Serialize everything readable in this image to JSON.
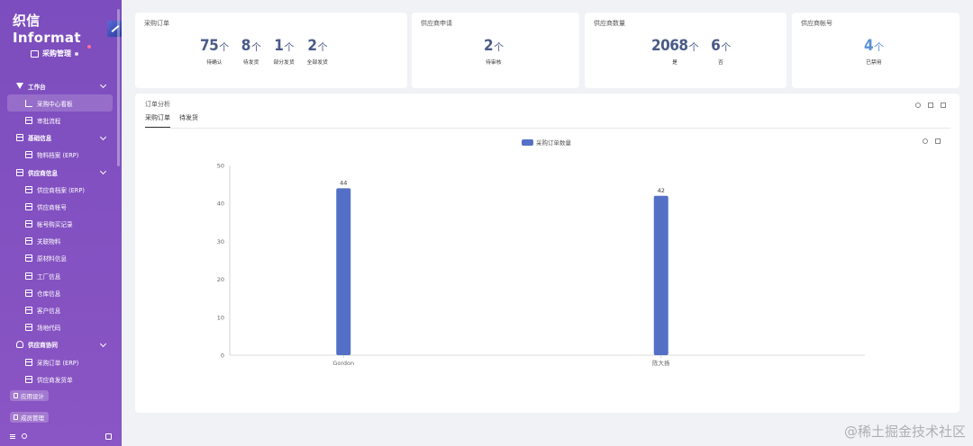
{
  "app": {
    "logo": "织信 Informat",
    "module": "采购管理"
  },
  "sidebar": {
    "items": [
      {
        "label": "工作台",
        "type": "group",
        "icon": "funnel-icon",
        "name": "workbench"
      },
      {
        "label": "采购中心看板",
        "type": "child",
        "icon": "chart-icon",
        "active": true,
        "name": "purchase-dashboard"
      },
      {
        "label": "审批流程",
        "type": "child",
        "icon": "grid-icon",
        "name": "approval-flow"
      },
      {
        "label": "基础信息",
        "type": "group",
        "icon": "grid-icon",
        "name": "basic-info"
      },
      {
        "label": "物料档案 (ERP)",
        "type": "child",
        "icon": "grid-icon",
        "name": "material-archive"
      },
      {
        "label": "供应商信息",
        "type": "group",
        "icon": "grid-icon",
        "name": "supplier-info"
      },
      {
        "label": "供应商档案 (ERP)",
        "type": "child",
        "icon": "grid-icon",
        "name": "supplier-archive"
      },
      {
        "label": "供应商帐号",
        "type": "child",
        "icon": "grid-icon",
        "name": "supplier-account"
      },
      {
        "label": "帐号购买记录",
        "type": "child",
        "icon": "grid-icon",
        "name": "account-purchase-record"
      },
      {
        "label": "关联物料",
        "type": "child",
        "icon": "grid-icon",
        "name": "related-material"
      },
      {
        "label": "原材料信息",
        "type": "child",
        "icon": "grid-icon",
        "name": "raw-material-info"
      },
      {
        "label": "工厂信息",
        "type": "child",
        "icon": "grid-icon",
        "name": "factory-info"
      },
      {
        "label": "仓库信息",
        "type": "child",
        "icon": "grid-icon",
        "name": "warehouse-info"
      },
      {
        "label": "客户信息",
        "type": "child",
        "icon": "grid-icon",
        "name": "customer-info"
      },
      {
        "label": "场地代码",
        "type": "child",
        "icon": "grid-icon",
        "name": "site-code"
      },
      {
        "label": "供应商协同",
        "type": "group",
        "icon": "user-icon",
        "name": "supplier-collab"
      },
      {
        "label": "采购订单 (ERP)",
        "type": "child",
        "icon": "grid-icon",
        "name": "purchase-order"
      },
      {
        "label": "供应商发货单",
        "type": "child",
        "icon": "grid-icon",
        "name": "supplier-delivery"
      }
    ],
    "app_design": "应用设计",
    "member_management": "成员管理"
  },
  "cards": {
    "purchase_order": {
      "title": "采购订单",
      "stats": [
        {
          "value": "75",
          "unit": "个",
          "label": "待确认"
        },
        {
          "value": "8",
          "unit": "个",
          "label": "待发货"
        },
        {
          "value": "1",
          "unit": "个",
          "label": "部分发货"
        },
        {
          "value": "2",
          "unit": "个",
          "label": "全部发货"
        }
      ]
    },
    "supplier_application": {
      "title": "供应商申请",
      "stats": [
        {
          "value": "2",
          "unit": "个",
          "label": "待审核"
        }
      ]
    },
    "supplier_count": {
      "title": "供应商数量",
      "stats": [
        {
          "value": "2068",
          "unit": "个",
          "label": "是"
        },
        {
          "value": "6",
          "unit": "个",
          "label": "否"
        }
      ]
    },
    "supplier_account": {
      "title": "供应商帐号",
      "stats": [
        {
          "value": "4",
          "unit": "个",
          "label": "已禁用"
        }
      ]
    }
  },
  "analysis": {
    "title": "订单分析",
    "tabs": [
      "采购订单",
      "待发货"
    ]
  },
  "chart_data": {
    "type": "bar",
    "categories": [
      "Gordon",
      "陈大扬"
    ],
    "series": [
      {
        "name": "采购订单数量",
        "values": [
          44,
          42
        ]
      }
    ],
    "ylim": [
      0,
      50
    ],
    "yticks": [
      0,
      10,
      20,
      30,
      40,
      50
    ],
    "bar_color": "#5470c6",
    "legend_position": "top"
  },
  "watermark": "@稀土掘金技术社区"
}
